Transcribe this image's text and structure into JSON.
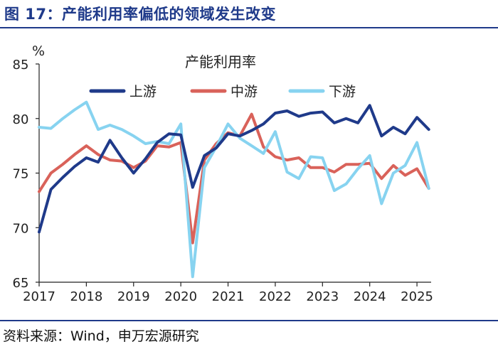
{
  "figure": {
    "title": "图 17：产能利用率偏低的领域发生改变",
    "source": "资料来源：Wind，申万宏源研究"
  },
  "chart_data": {
    "type": "line",
    "title": "产能利用率",
    "unit_label": "%",
    "xlim": [
      2017.0,
      2025.3
    ],
    "ylim": [
      65,
      85
    ],
    "yticks": [
      65,
      70,
      75,
      80,
      85
    ],
    "xticks": [
      "2017",
      "2018",
      "2019",
      "2020",
      "2021",
      "2022",
      "2023",
      "2024",
      "2025"
    ],
    "grid": false,
    "legend_position": "top-center",
    "series": [
      {
        "name": "上游",
        "color": "#1f3a8a",
        "x": [
          2017.0,
          2017.25,
          2017.5,
          2017.75,
          2018.0,
          2018.25,
          2018.5,
          2018.75,
          2019.0,
          2019.25,
          2019.5,
          2019.75,
          2020.0,
          2020.25,
          2020.5,
          2020.75,
          2021.0,
          2021.25,
          2021.5,
          2021.75,
          2022.0,
          2022.25,
          2022.5,
          2022.75,
          2023.0,
          2023.25,
          2023.5,
          2023.75,
          2024.0,
          2024.25,
          2024.5,
          2024.75,
          2025.0,
          2025.25
        ],
        "values": [
          69.6,
          73.5,
          74.6,
          75.6,
          76.4,
          76.0,
          78.0,
          76.4,
          75.0,
          76.3,
          77.8,
          78.6,
          78.5,
          73.7,
          76.6,
          77.3,
          78.6,
          78.4,
          78.9,
          79.5,
          80.5,
          80.7,
          80.2,
          80.5,
          80.6,
          79.6,
          80.0,
          79.6,
          81.2,
          78.4,
          79.2,
          78.6,
          80.1,
          79.0
        ]
      },
      {
        "name": "中游",
        "color": "#d9625a",
        "x": [
          2017.0,
          2017.25,
          2017.5,
          2017.75,
          2018.0,
          2018.25,
          2018.5,
          2018.75,
          2019.0,
          2019.25,
          2019.5,
          2019.75,
          2020.0,
          2020.25,
          2020.5,
          2020.75,
          2021.0,
          2021.25,
          2021.5,
          2021.75,
          2022.0,
          2022.25,
          2022.5,
          2022.75,
          2023.0,
          2023.25,
          2023.5,
          2023.75,
          2024.0,
          2024.25,
          2024.5,
          2024.75,
          2025.0,
          2025.25
        ],
        "values": [
          73.3,
          75.0,
          75.8,
          76.7,
          77.5,
          76.7,
          76.2,
          76.1,
          75.5,
          76.1,
          77.5,
          77.4,
          77.8,
          68.6,
          76.2,
          77.7,
          78.7,
          78.4,
          80.4,
          77.4,
          76.5,
          76.2,
          76.4,
          75.5,
          75.5,
          75.1,
          75.8,
          75.8,
          75.9,
          74.5,
          75.7,
          74.8,
          75.4,
          73.6
        ]
      },
      {
        "name": "下游",
        "color": "#87d3f0",
        "x": [
          2017.0,
          2017.25,
          2017.5,
          2017.75,
          2018.0,
          2018.25,
          2018.5,
          2018.75,
          2019.0,
          2019.25,
          2019.5,
          2019.75,
          2020.0,
          2020.25,
          2020.5,
          2020.75,
          2021.0,
          2021.25,
          2021.5,
          2021.75,
          2022.0,
          2022.25,
          2022.5,
          2022.75,
          2023.0,
          2023.25,
          2023.5,
          2023.75,
          2024.0,
          2024.25,
          2024.5,
          2024.75,
          2025.0,
          2025.25
        ],
        "values": [
          79.2,
          79.1,
          80.0,
          80.8,
          81.5,
          79.0,
          79.4,
          79.0,
          78.4,
          77.7,
          77.9,
          77.7,
          79.5,
          65.5,
          75.5,
          77.4,
          79.5,
          78.2,
          77.5,
          76.8,
          78.8,
          75.1,
          74.5,
          76.5,
          76.4,
          73.4,
          74.0,
          75.4,
          76.6,
          72.2,
          75.0,
          75.7,
          77.8,
          73.6
        ]
      }
    ]
  }
}
